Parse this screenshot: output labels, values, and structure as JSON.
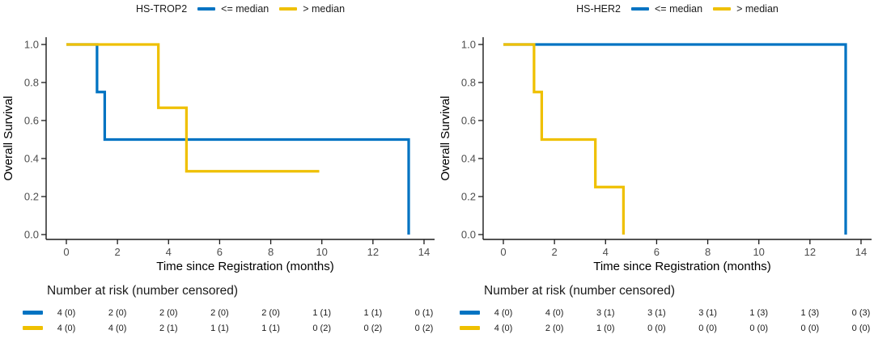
{
  "colors": {
    "blue": "#0073C2",
    "gold": "#EFC000",
    "axis": "#1a1a1a",
    "tick_label": "#4d4d4d",
    "label": "#000000"
  },
  "chart_data": [
    {
      "type": "line",
      "subtype": "kaplan-meier-step",
      "title": "HS-TROP2",
      "xlabel": "Time since Registration (months)",
      "ylabel": "Overall Survival",
      "xlim": [
        0,
        14
      ],
      "ylim": [
        0.0,
        1.0
      ],
      "grid": false,
      "legend_position": "top",
      "x_ticks": [
        0,
        2,
        4,
        6,
        8,
        10,
        12,
        14
      ],
      "x_tick_labels": [
        "0",
        "2",
        "4",
        "6",
        "8",
        "10",
        "12",
        "14"
      ],
      "y_ticks": [
        0.0,
        0.2,
        0.4,
        0.6,
        0.8,
        1.0
      ],
      "y_tick_labels": [
        "0.0",
        "0.2",
        "0.4",
        "0.6",
        "0.8",
        "1.0"
      ],
      "legend": [
        {
          "label": "<= median",
          "color": "blue"
        },
        {
          "label": "> median",
          "color": "gold"
        }
      ],
      "series": [
        {
          "name": "<= median",
          "color": "blue",
          "steps": [
            [
              0,
              1.0
            ],
            [
              1.2,
              1.0
            ],
            [
              1.2,
              0.75
            ],
            [
              1.5,
              0.75
            ],
            [
              1.5,
              0.5
            ],
            [
              13.4,
              0.5
            ],
            [
              13.4,
              0.0
            ]
          ]
        },
        {
          "name": "> median",
          "color": "gold",
          "steps": [
            [
              0,
              1.0
            ],
            [
              3.6,
              1.0
            ],
            [
              3.6,
              0.667
            ],
            [
              4.7,
              0.667
            ],
            [
              4.7,
              0.333
            ],
            [
              9.9,
              0.333
            ]
          ]
        }
      ],
      "risk_table": {
        "header": "Number at risk (number censored)",
        "columns_at_months": [
          0,
          2,
          4,
          6,
          8,
          10,
          12,
          14
        ],
        "rows": [
          {
            "color": "blue",
            "values": [
              "4 (0)",
              "2 (0)",
              "2 (0)",
              "2 (0)",
              "2 (0)",
              "1 (1)",
              "1 (1)",
              "0 (1)"
            ]
          },
          {
            "color": "gold",
            "values": [
              "4 (0)",
              "4 (0)",
              "2 (1)",
              "1 (1)",
              "1 (1)",
              "0 (2)",
              "0 (2)",
              "0 (2)"
            ]
          }
        ]
      }
    },
    {
      "type": "line",
      "subtype": "kaplan-meier-step",
      "title": "HS-HER2",
      "xlabel": "Time since Registration (months)",
      "ylabel": "Overall Survival",
      "xlim": [
        0,
        14
      ],
      "ylim": [
        0.0,
        1.0
      ],
      "grid": false,
      "legend_position": "top",
      "x_ticks": [
        0,
        2,
        4,
        6,
        8,
        10,
        12,
        14
      ],
      "x_tick_labels": [
        "0",
        "2",
        "4",
        "6",
        "8",
        "10",
        "12",
        "14"
      ],
      "y_ticks": [
        0.0,
        0.2,
        0.4,
        0.6,
        0.8,
        1.0
      ],
      "y_tick_labels": [
        "0.0",
        "0.2",
        "0.4",
        "0.6",
        "0.8",
        "1.0"
      ],
      "legend": [
        {
          "label": "<= median",
          "color": "blue"
        },
        {
          "label": "> median",
          "color": "gold"
        }
      ],
      "series": [
        {
          "name": "<= median",
          "color": "blue",
          "steps": [
            [
              0,
              1.0
            ],
            [
              13.4,
              1.0
            ],
            [
              13.4,
              0.0
            ]
          ]
        },
        {
          "name": "> median",
          "color": "gold",
          "steps": [
            [
              0,
              1.0
            ],
            [
              1.2,
              1.0
            ],
            [
              1.2,
              0.75
            ],
            [
              1.5,
              0.75
            ],
            [
              1.5,
              0.5
            ],
            [
              3.6,
              0.5
            ],
            [
              3.6,
              0.25
            ],
            [
              4.7,
              0.25
            ],
            [
              4.7,
              0.0
            ]
          ]
        }
      ],
      "risk_table": {
        "header": "Number at risk (number censored)",
        "columns_at_months": [
          0,
          2,
          4,
          6,
          8,
          10,
          12,
          14
        ],
        "rows": [
          {
            "color": "blue",
            "values": [
              "4 (0)",
              "4 (0)",
              "3 (1)",
              "3 (1)",
              "3 (1)",
              "1 (3)",
              "1 (3)",
              "0 (3)"
            ]
          },
          {
            "color": "gold",
            "values": [
              "4 (0)",
              "2 (0)",
              "1 (0)",
              "0 (0)",
              "0 (0)",
              "0 (0)",
              "0 (0)",
              "0 (0)"
            ]
          }
        ]
      }
    }
  ]
}
